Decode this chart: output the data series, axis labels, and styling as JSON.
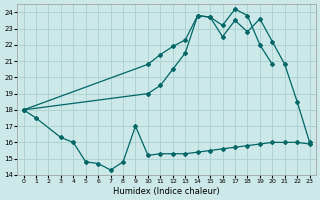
{
  "xlabel": "Humidex (Indice chaleur)",
  "background_color": "#cce8e8",
  "grid_color": "#aacfcf",
  "line_color": "#006666",
  "xlim": [
    -0.5,
    23.5
  ],
  "ylim": [
    14,
    24.5
  ],
  "yticks": [
    14,
    15,
    16,
    17,
    18,
    19,
    20,
    21,
    22,
    23,
    24
  ],
  "xticks": [
    0,
    1,
    2,
    3,
    4,
    5,
    6,
    7,
    8,
    9,
    10,
    11,
    12,
    13,
    14,
    15,
    16,
    17,
    18,
    19,
    20,
    21,
    22,
    23
  ],
  "line1_x": [
    0,
    1,
    3,
    4,
    5,
    6,
    7,
    8,
    9,
    10,
    11,
    12,
    13,
    14,
    15,
    16,
    17,
    18,
    19,
    20,
    21,
    22,
    23
  ],
  "line1_y": [
    18.0,
    17.5,
    16.3,
    16.0,
    14.8,
    14.7,
    14.3,
    14.8,
    17.0,
    15.2,
    15.3,
    15.3,
    15.3,
    15.4,
    15.5,
    15.6,
    15.7,
    15.8,
    15.9,
    16.0,
    16.0,
    16.0,
    15.9
  ],
  "line2_x": [
    0,
    10,
    11,
    12,
    13,
    14,
    15,
    16,
    17,
    18,
    19,
    20,
    21,
    22,
    23
  ],
  "line2_y": [
    18.0,
    19.0,
    19.5,
    20.5,
    21.5,
    23.8,
    23.7,
    22.5,
    23.5,
    22.8,
    23.6,
    22.2,
    20.8,
    18.5,
    16.0
  ],
  "line3_x": [
    0,
    10,
    11,
    12,
    13,
    14,
    15,
    16,
    17,
    18,
    19,
    20
  ],
  "line3_y": [
    18.0,
    20.8,
    21.4,
    21.9,
    22.3,
    23.8,
    23.7,
    23.2,
    24.2,
    23.8,
    22.0,
    20.8
  ],
  "markersize": 2.0
}
